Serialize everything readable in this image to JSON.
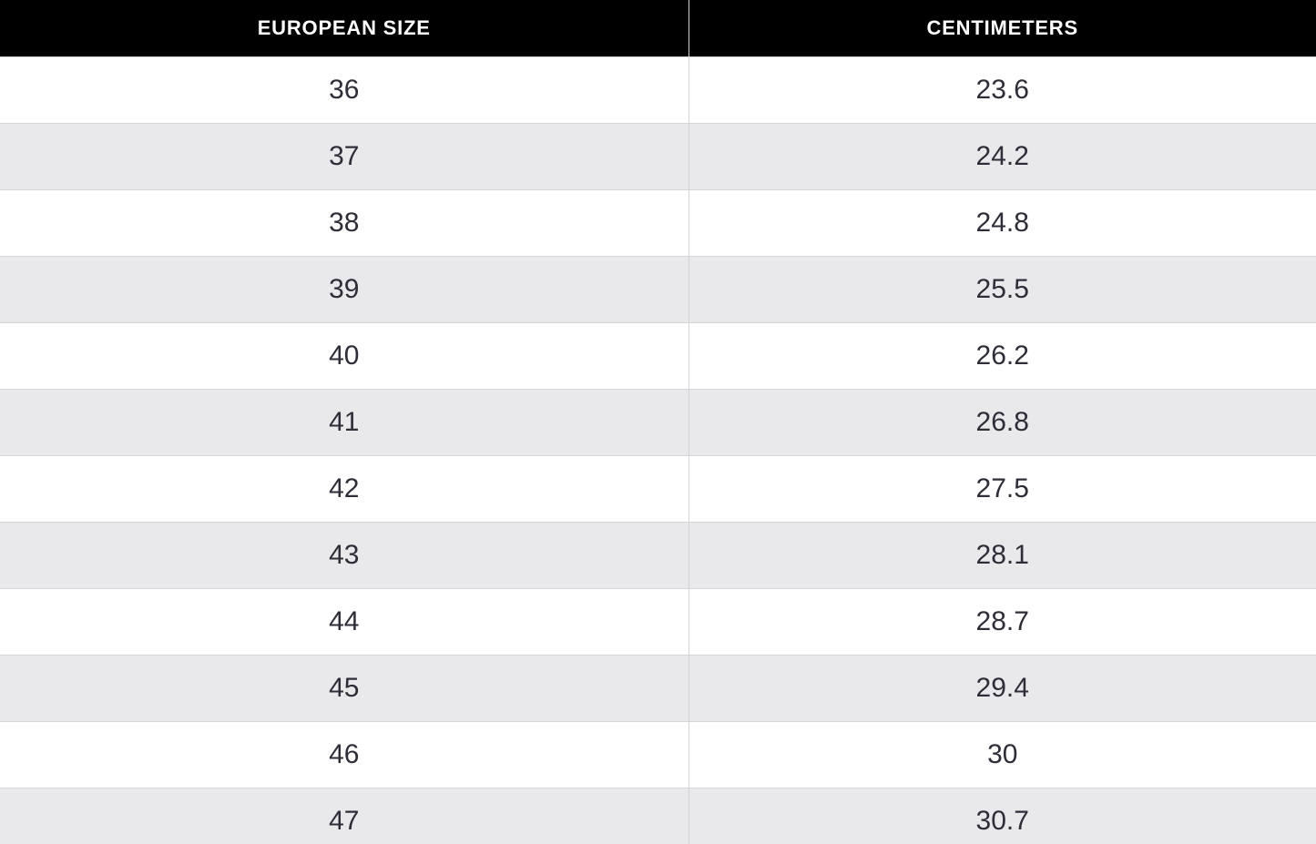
{
  "colors": {
    "header_bg": "#000000",
    "header_text": "#ffffff",
    "row_bg": "#ffffff",
    "row_alt_bg": "#e9e8ea",
    "grid_line": "#d2d2d6",
    "body_text": "#2e2e38"
  },
  "chart_data": {
    "type": "table",
    "title": "",
    "columns": [
      "EUROPEAN SIZE",
      "CENTIMETERS"
    ],
    "rows": [
      [
        "36",
        "23.6"
      ],
      [
        "37",
        "24.2"
      ],
      [
        "38",
        "24.8"
      ],
      [
        "39",
        "25.5"
      ],
      [
        "40",
        "26.2"
      ],
      [
        "41",
        "26.8"
      ],
      [
        "42",
        "27.5"
      ],
      [
        "43",
        "28.1"
      ],
      [
        "44",
        "28.7"
      ],
      [
        "45",
        "29.4"
      ],
      [
        "46",
        "30"
      ],
      [
        "47",
        "30.7"
      ]
    ],
    "layout": {
      "zebra_striping": true,
      "first_row_after_header": "white",
      "column_divider": true,
      "outer_border": false,
      "last_row_clipped": true
    }
  }
}
